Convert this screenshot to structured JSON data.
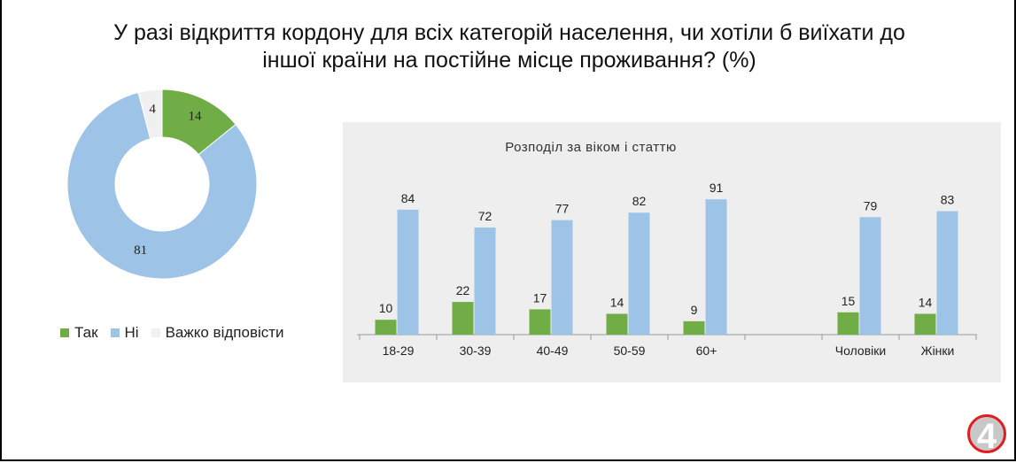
{
  "title_line1": "У разі відкриття кордону для всіх категорій населення, чи хотіли б виїхати до",
  "title_line2": "іншої країни на постійне місце проживання? (%)",
  "colors": {
    "yes": "#70ad47",
    "no": "#9dc3e6",
    "hard": "#f0f0f0"
  },
  "logo_text": "4",
  "chart_data": [
    {
      "type": "pie",
      "variant": "donut",
      "labels": [
        "Так",
        "Ні",
        "Важко відповісти"
      ],
      "values": [
        14,
        81,
        4
      ],
      "legend": "bottom"
    },
    {
      "type": "bar",
      "title": "Розподіл за віком і статтю",
      "categories": [
        "18-29",
        "30-39",
        "40-49",
        "50-59",
        "60+",
        "",
        "Чоловіки",
        "Жінки"
      ],
      "series": [
        {
          "name": "Так",
          "values": [
            10,
            22,
            17,
            14,
            9,
            null,
            15,
            14
          ]
        },
        {
          "name": "Ні",
          "values": [
            84,
            72,
            77,
            82,
            91,
            null,
            79,
            83
          ]
        }
      ],
      "ylim": [
        0,
        100
      ],
      "grid": false
    }
  ]
}
